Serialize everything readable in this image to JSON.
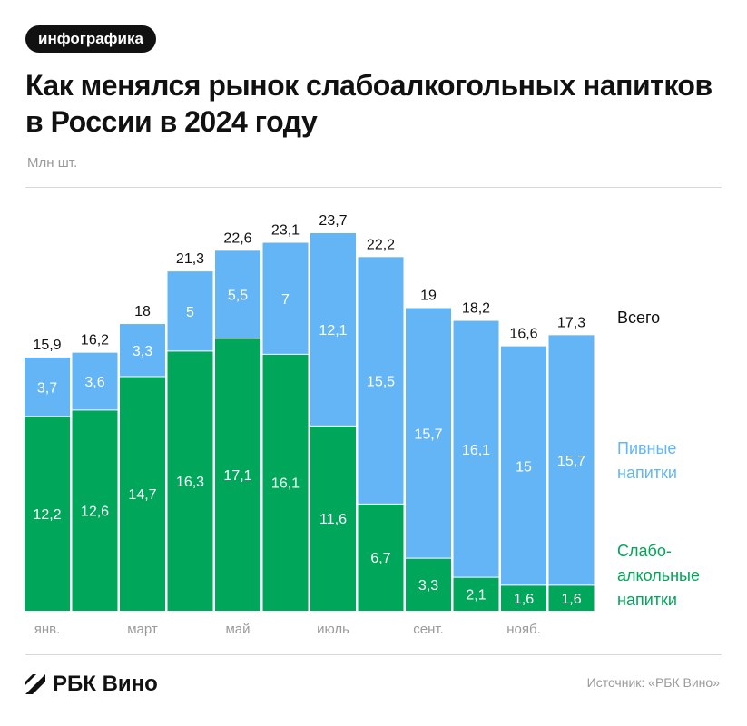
{
  "header": {
    "tag": "инфографика",
    "title": "Как менялся рынок слабоалкогольных напитков в России в 2024 году",
    "unit": "Млн шт."
  },
  "legend": {
    "total": "Всего",
    "beer": "Пивные напитки",
    "low": "Слабо-алкольные напитки"
  },
  "footer": {
    "brand": "РБК Вино",
    "source": "Источник: «РБК Вино»"
  },
  "colors": {
    "beer": "#64b5f6",
    "low": "#00a65a"
  },
  "chart_data": {
    "type": "bar",
    "stacked": true,
    "categories": [
      "янв.",
      "",
      "март",
      "",
      "май",
      "",
      "июль",
      "",
      "сент.",
      "",
      "нояб.",
      ""
    ],
    "series": [
      {
        "name": "Слабо-алкольные напитки",
        "values": [
          12.2,
          12.6,
          14.7,
          16.3,
          17.1,
          16.1,
          11.6,
          6.7,
          3.3,
          2.1,
          1.6,
          1.6
        ],
        "labels": [
          "12,2",
          "12,6",
          "14,7",
          "16,3",
          "17,1",
          "16,1",
          "11,6",
          "6,7",
          "3,3",
          "2,1",
          "1,6",
          "1,6"
        ]
      },
      {
        "name": "Пивные напитки",
        "values": [
          3.7,
          3.6,
          3.3,
          5,
          5.5,
          7,
          12.1,
          15.5,
          15.7,
          16.1,
          15,
          15.7
        ],
        "labels": [
          "3,7",
          "3,6",
          "3,3",
          "5",
          "5,5",
          "7",
          "12,1",
          "15,5",
          "15,7",
          "16,1",
          "15",
          "15,7"
        ]
      }
    ],
    "totals": [
      15.9,
      16.2,
      18,
      21.3,
      22.6,
      23.1,
      23.7,
      22.2,
      19,
      18.2,
      16.6,
      17.3
    ],
    "total_labels": [
      "15,9",
      "16,2",
      "18",
      "21,3",
      "22,6",
      "23,1",
      "23,7",
      "22,2",
      "19",
      "18,2",
      "16,6",
      "17,3"
    ],
    "ylim": [
      0,
      23.7
    ],
    "grid": false
  }
}
